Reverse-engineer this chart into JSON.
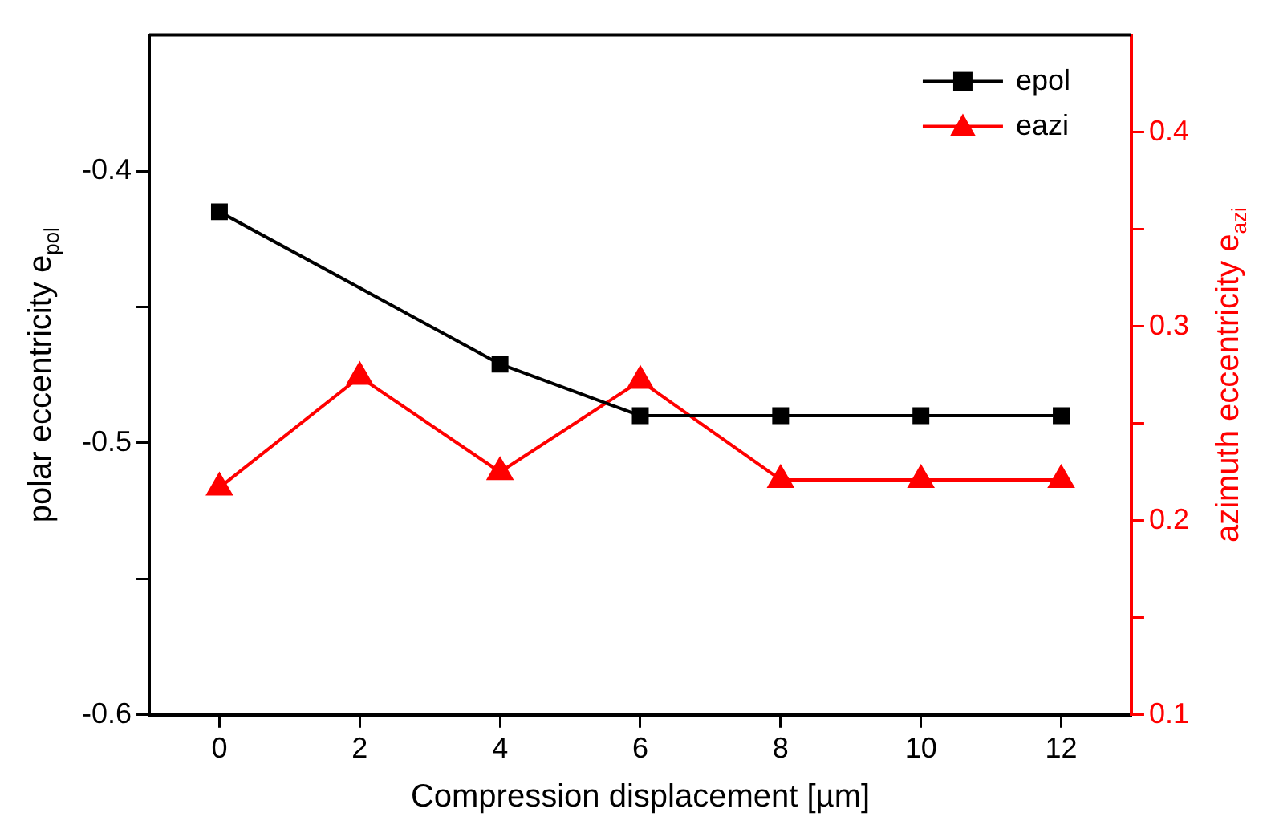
{
  "chart_data": {
    "type": "line",
    "xlabel": "Compression displacement [µm]",
    "ylabel": "polar eccentricity e$_{pol}$",
    "y2label": "azimuth eccentricity e$_{azi}$",
    "x": [
      0,
      2,
      4,
      6,
      8,
      10,
      12
    ],
    "series": [
      {
        "name": "epol",
        "color": "#000000",
        "marker": "square",
        "values": [
          -0.415,
          null,
          -0.471,
          -0.49,
          -0.49,
          -0.49,
          -0.49
        ]
      },
      {
        "name": "eazi",
        "color": "#ff0000",
        "marker": "triangle",
        "axis": "y2",
        "values": [
          0.217,
          0.274,
          0.225,
          0.272,
          0.221,
          0.221,
          0.221
        ]
      }
    ],
    "xlim": [
      -1,
      13
    ],
    "xticks": [
      0,
      2,
      4,
      6,
      8,
      10,
      12
    ],
    "ylim": [
      -0.6,
      -0.35
    ],
    "yticks": [
      -0.6,
      {
        "value": -0.55,
        "label": null
      },
      -0.5,
      {
        "value": -0.45,
        "label": null
      },
      -0.4
    ],
    "y2lim": [
      0.1,
      0.45
    ],
    "y2ticks": [
      0.1,
      {
        "value": 0.15,
        "label": null
      },
      0.2,
      {
        "value": 0.25,
        "label": null
      },
      0.3,
      {
        "value": 0.35,
        "label": null
      },
      0.4
    ],
    "grid": false,
    "legend": "top right",
    "line_style": "solid"
  }
}
